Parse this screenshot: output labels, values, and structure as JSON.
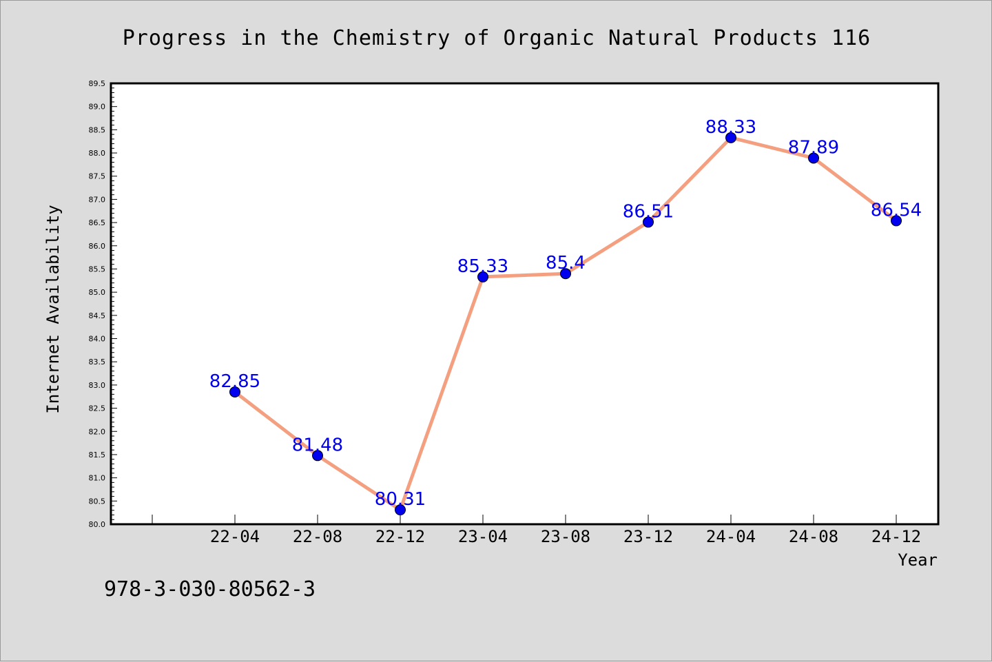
{
  "chart_data": {
    "type": "line",
    "title": "Progress in the Chemistry of Organic Natural Products 116",
    "xlabel": "Year",
    "ylabel": "Internet Availability",
    "categories": [
      "22-04",
      "22-08",
      "22-12",
      "23-04",
      "23-08",
      "23-12",
      "24-04",
      "24-08",
      "24-12"
    ],
    "series": [
      {
        "values": [
          82.85,
          81.48,
          80.31,
          85.33,
          85.4,
          86.51,
          88.33,
          87.89,
          86.54
        ],
        "data_labels": [
          "82.85",
          "81.48",
          "80.31",
          "85.33",
          "85.4",
          "86.51",
          "88.33",
          "87.89",
          "86.54"
        ]
      }
    ],
    "ylim": [
      80.0,
      89.5
    ],
    "yticks": [
      "80.0",
      "80.5",
      "81.0",
      "81.5",
      "82.0",
      "82.5",
      "83.0",
      "83.5",
      "84.0",
      "84.5",
      "85.0",
      "85.5",
      "86.0",
      "86.5",
      "87.0",
      "87.5",
      "88.0",
      "88.5",
      "89.0",
      "89.5"
    ],
    "grid": false,
    "line_color": "#f4a080",
    "marker_color": "#0000ee",
    "label_color": "#0000ee"
  },
  "footnote": "978-3-030-80562-3"
}
